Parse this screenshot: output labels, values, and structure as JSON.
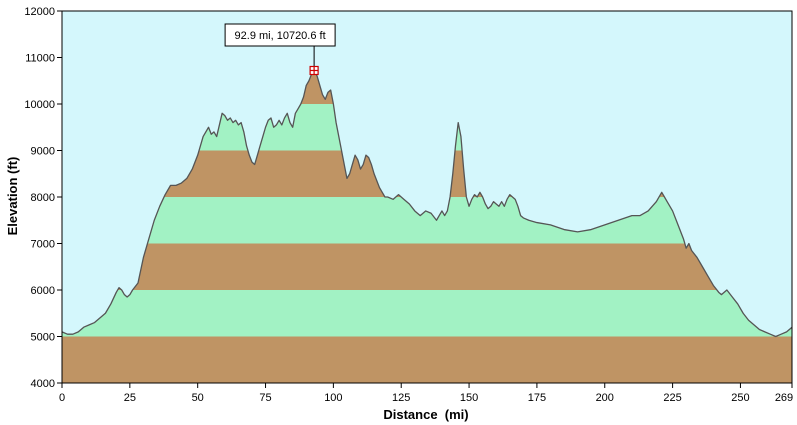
{
  "chart_data": {
    "type": "area",
    "xlabel": "Distance  (mi)",
    "ylabel": "Elevation (ft)",
    "xlim": [
      0,
      269
    ],
    "ylim": [
      4000,
      12000
    ],
    "x_ticks": [
      0,
      25,
      50,
      75,
      100,
      125,
      150,
      175,
      200,
      225,
      250,
      269
    ],
    "y_ticks": [
      4000,
      5000,
      6000,
      7000,
      8000,
      9000,
      10000,
      11000,
      12000
    ],
    "band_colors": [
      "#bf9464",
      "#a2f2c4"
    ],
    "colors": {
      "background": "#d4f7fc",
      "profile_line": "#555555",
      "marker": "#cc0000"
    },
    "grid": false,
    "annotation": {
      "text": "92.9 mi, 10720.6 ft",
      "x": 92.9,
      "y": 10720.6
    },
    "series": [
      {
        "x": [
          0,
          2,
          4,
          6,
          8,
          10,
          12,
          14,
          16,
          18,
          20,
          21,
          22,
          23,
          24,
          25,
          26,
          28,
          30,
          32,
          34,
          36,
          38,
          40,
          42,
          44,
          46,
          48,
          50,
          52,
          54,
          55,
          56,
          57,
          58,
          59,
          60,
          61,
          62,
          63,
          64,
          65,
          66,
          67,
          68,
          69,
          70,
          71,
          72,
          73,
          74,
          75,
          76,
          77,
          78,
          79,
          80,
          81,
          82,
          83,
          84,
          85,
          86,
          87,
          88,
          89,
          90,
          91,
          92,
          92.9,
          94,
          95,
          96,
          97,
          98,
          99,
          100,
          101,
          102,
          103,
          104,
          105,
          106,
          107,
          108,
          109,
          110,
          111,
          112,
          113,
          114,
          115,
          116,
          117,
          118,
          119,
          120,
          122,
          124,
          126,
          128,
          130,
          132,
          134,
          136,
          138,
          139,
          140,
          141,
          142,
          143,
          144,
          145,
          146,
          147,
          148,
          149,
          150,
          151,
          152,
          153,
          154,
          155,
          156,
          157,
          158,
          159,
          160,
          161,
          162,
          163,
          164,
          165,
          166,
          167,
          168,
          169,
          170,
          172,
          175,
          180,
          185,
          190,
          195,
          200,
          205,
          210,
          213,
          216,
          219,
          221,
          222,
          223,
          225,
          227,
          229,
          230,
          231,
          232,
          234,
          236,
          238,
          240,
          242,
          243,
          245,
          247,
          249,
          251,
          253,
          255,
          257,
          259,
          261,
          263,
          265,
          267,
          269
        ],
        "y": [
          5100,
          5050,
          5050,
          5100,
          5200,
          5250,
          5300,
          5400,
          5500,
          5700,
          5950,
          6050,
          6000,
          5900,
          5850,
          5900,
          6000,
          6150,
          6700,
          7100,
          7500,
          7800,
          8050,
          8250,
          8250,
          8300,
          8400,
          8600,
          8900,
          9300,
          9500,
          9350,
          9400,
          9300,
          9550,
          9800,
          9750,
          9650,
          9700,
          9600,
          9650,
          9550,
          9600,
          9400,
          9100,
          8900,
          8750,
          8700,
          8900,
          9100,
          9300,
          9500,
          9650,
          9700,
          9500,
          9550,
          9650,
          9550,
          9700,
          9800,
          9600,
          9500,
          9800,
          9900,
          10000,
          10150,
          10400,
          10500,
          10650,
          10720,
          10600,
          10400,
          10200,
          10100,
          10250,
          10300,
          10000,
          9600,
          9300,
          9000,
          8700,
          8400,
          8500,
          8700,
          8900,
          8800,
          8600,
          8700,
          8900,
          8850,
          8700,
          8500,
          8350,
          8200,
          8100,
          8000,
          8000,
          7950,
          8050,
          7950,
          7850,
          7700,
          7600,
          7700,
          7650,
          7500,
          7600,
          7700,
          7600,
          7700,
          8000,
          8500,
          9100,
          9600,
          9300,
          8600,
          8000,
          7800,
          7950,
          8050,
          8000,
          8100,
          8000,
          7850,
          7750,
          7800,
          7900,
          7850,
          7800,
          7900,
          7800,
          7950,
          8050,
          8000,
          7950,
          7800,
          7600,
          7550,
          7500,
          7450,
          7400,
          7300,
          7250,
          7300,
          7400,
          7500,
          7600,
          7600,
          7700,
          7900,
          8100,
          8000,
          7900,
          7700,
          7400,
          7100,
          6900,
          7000,
          6850,
          6700,
          6500,
          6300,
          6100,
          5950,
          5900,
          6000,
          5850,
          5700,
          5500,
          5350,
          5250,
          5150,
          5100,
          5050,
          5000,
          5050,
          5100,
          5200
        ]
      }
    ]
  }
}
